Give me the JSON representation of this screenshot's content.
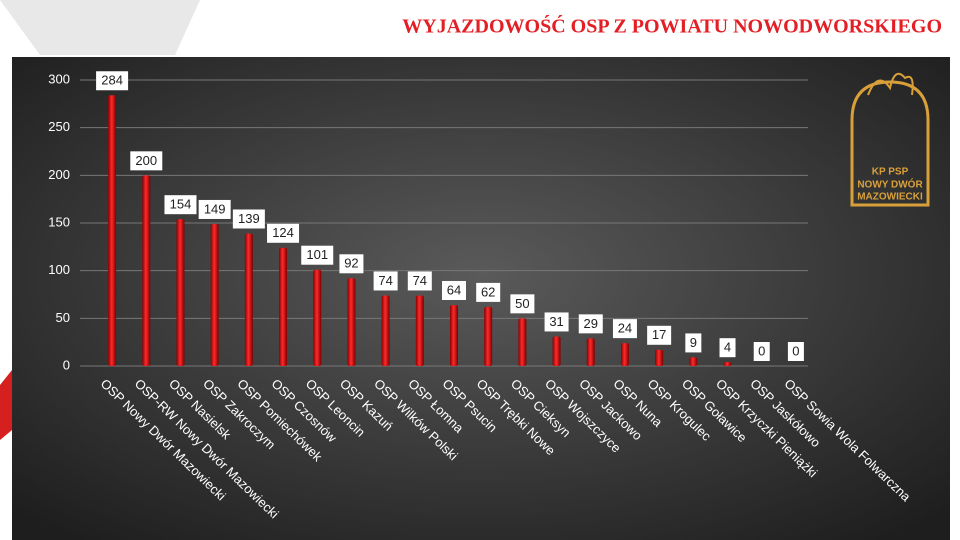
{
  "chart_data": {
    "type": "bar",
    "title": "WYJAZDOWOŚĆ OSP Z POWIATU NOWODWORSKIEGO",
    "logo_text": [
      "KP PSP",
      "NOWY DWÓR",
      "MAZOWIECKI"
    ],
    "categories": [
      "OSP Nowy Dwór Mazowiecki",
      "OSP-RW Nowy Dwór Mazowiecki",
      "OSP Nasielsk",
      "OSP Zakroczym",
      "OSP Pomiechówek",
      "OSP Czosnów",
      "OSP Leoncin",
      "OSP Kazuń",
      "OSP Wilków Polski",
      "OSP Łomna",
      "OSP Psucin",
      "OSP Trębki Nowe",
      "OSP Cieksyn",
      "OSP Wojszczyce",
      "OSP Jackowo",
      "OSP Nuna",
      "OSP Krogulec",
      "OSP Goławice",
      "OSP Krzyczki Pieniążki",
      "OSP Jaskółowo",
      "OSP Sowia Wola Folwarczna"
    ],
    "values": [
      284,
      200,
      154,
      149,
      139,
      124,
      101,
      92,
      74,
      74,
      64,
      62,
      50,
      31,
      29,
      24,
      17,
      9,
      4,
      0,
      0
    ],
    "color": "#e00000",
    "ylim": [
      0,
      300
    ],
    "yticks": [
      0,
      50,
      100,
      150,
      200,
      250,
      300
    ],
    "grid": true
  }
}
